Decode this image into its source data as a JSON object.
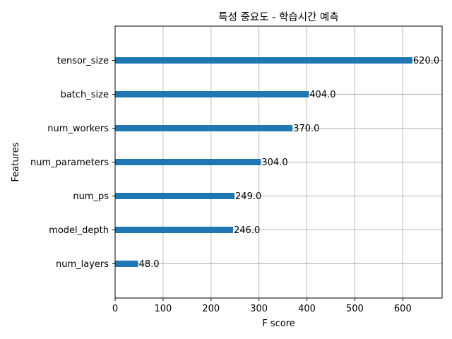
{
  "chart_data": {
    "type": "bar",
    "orientation": "horizontal",
    "title": "특성 중요도 - 학습시간 예측",
    "xlabel": "F score",
    "ylabel": "Features",
    "categories": [
      "num_layers",
      "model_depth",
      "num_ps",
      "num_parameters",
      "num_workers",
      "batch_size",
      "tensor_size"
    ],
    "values": [
      48,
      246,
      249,
      304,
      370,
      404,
      620
    ],
    "value_labels": [
      "48.0",
      "246.0",
      "249.0",
      "304.0",
      "370.0",
      "404.0",
      "620.0"
    ],
    "xlim": [
      0,
      682
    ],
    "xticks": [
      0,
      100,
      200,
      300,
      400,
      500,
      600
    ],
    "xtick_labels": [
      "0",
      "100",
      "200",
      "300",
      "400",
      "500",
      "600"
    ],
    "grid": true,
    "bar_color": "#1f77b4"
  }
}
